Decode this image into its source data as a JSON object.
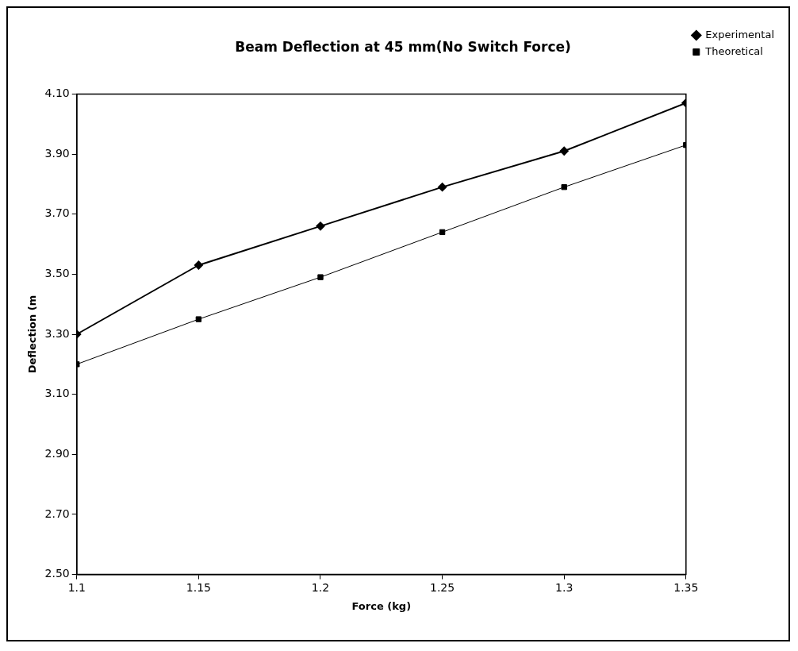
{
  "chart_data": {
    "type": "line",
    "title": "Beam Deflection at 45 mm(No Switch Force)",
    "xlabel": "Force (kg)",
    "ylabel": "Deflection (m",
    "x": [
      1.1,
      1.15,
      1.2,
      1.25,
      1.3,
      1.35
    ],
    "series": [
      {
        "name": "Experimental",
        "color": "#000000",
        "marker": "diamond",
        "values": [
          3.3,
          3.53,
          3.66,
          3.79,
          3.91,
          4.07
        ]
      },
      {
        "name": "Theoretical",
        "color": "#000000",
        "marker": "square",
        "values": [
          3.2,
          3.35,
          3.49,
          3.64,
          3.79,
          3.93
        ]
      }
    ],
    "xlim": [
      1.1,
      1.35
    ],
    "xticks": [
      1.1,
      1.15,
      1.2,
      1.25,
      1.3,
      1.35
    ],
    "ylim": [
      2.5,
      4.1
    ],
    "yticks": [
      {
        "value": 2.5,
        "label": "2.50"
      },
      {
        "value": 2.7,
        "label": "2.70"
      },
      {
        "value": 2.9,
        "label": "2.90"
      },
      {
        "value": 3.1,
        "label": "3.10"
      },
      {
        "value": 3.3,
        "label": "3.30"
      },
      {
        "value": 3.5,
        "label": "3.50"
      },
      {
        "value": 3.7,
        "label": "3.70"
      },
      {
        "value": 3.9,
        "label": "3.90"
      },
      {
        "value": 4.1,
        "label": "4.10"
      }
    ],
    "grid": false,
    "legend": "top right",
    "line_style": "solid"
  }
}
